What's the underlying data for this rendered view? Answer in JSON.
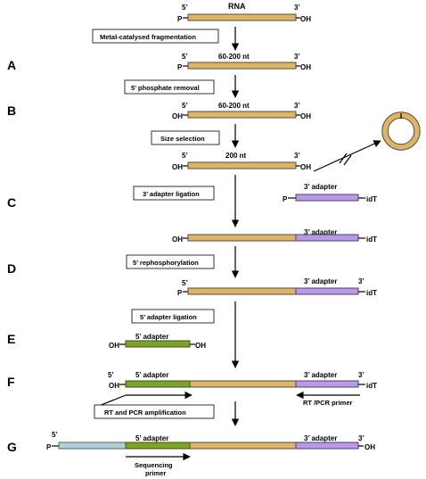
{
  "labels": {
    "five_prime": "5’",
    "three_prime": "3’",
    "p": "P",
    "oh": "OH",
    "idt": "idT",
    "rna": "RNA",
    "len_60_200": "60-200 nt",
    "len_200": "200 nt",
    "adapter3": "3’ adapter",
    "adapter5": "5’ adapter",
    "rt_pcr_primer": "RT /PCR primer",
    "seq_primer_1": "Sequencing",
    "seq_primer_2": "primer"
  },
  "steps": {
    "A": "A",
    "B": "B",
    "C": "C",
    "D": "D",
    "E": "E",
    "F": "F",
    "G": "G"
  },
  "boxes": {
    "fragmentation": "Metal-catalysed fragmentation",
    "phosphate_removal": "5’ phosphate removal",
    "size_selection": "Size selection",
    "adapter3_ligation": "3’ adapter ligation",
    "rephosphorylation": "5’ rephosphorylation",
    "adapter5_ligation": "5’ adapter ligation",
    "rt_pcr": "RT and  PCR amplification"
  },
  "colors": {
    "rna": "#d9b56f",
    "adapter3": "#b89be0",
    "adapter5": "#7fa22a",
    "extension": "#b6ccd6"
  }
}
